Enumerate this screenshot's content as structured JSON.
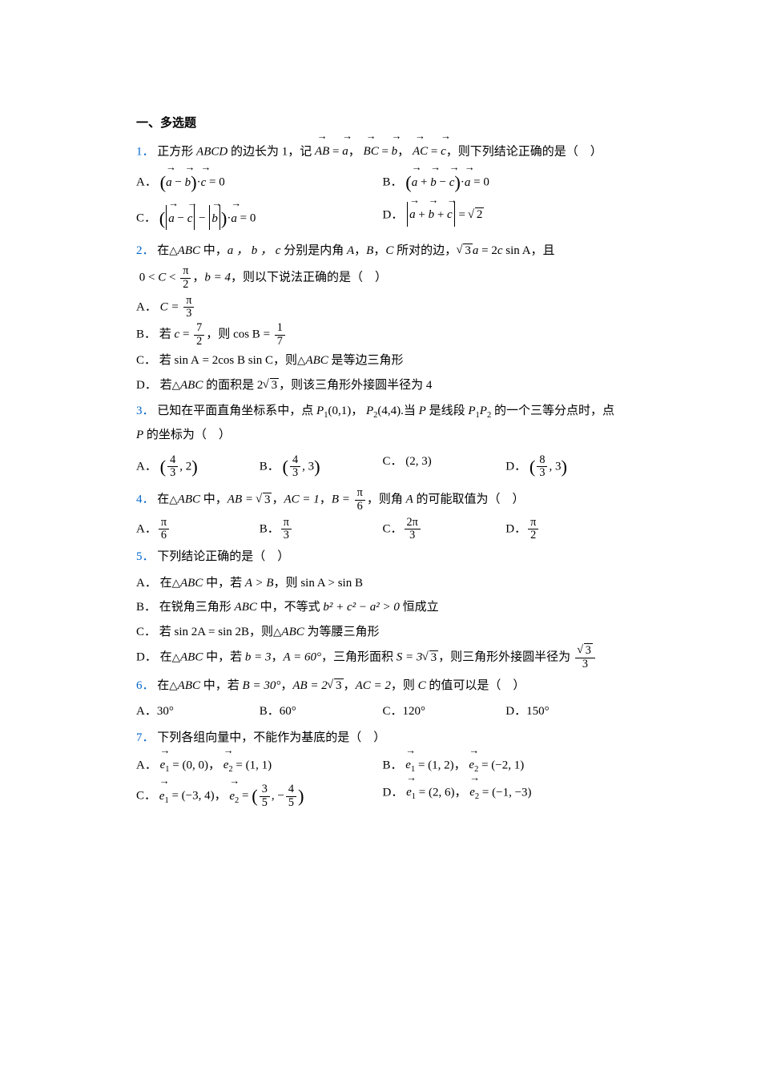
{
  "section_title": "一、多选题",
  "colors": {
    "text": "#000000",
    "qnum": "#0066cc",
    "background": "#ffffff"
  },
  "typography": {
    "base_fontsize": 15,
    "line_height": 1.9,
    "font_family": "SimSun / Times New Roman"
  },
  "questions": [
    {
      "num": "1．",
      "stem_parts": {
        "pre": "正方形 ",
        "abcd": "ABCD",
        "mid1": " 的边长为 1，记",
        "ab": "AB",
        "eq": " = ",
        "a": "a",
        "c1": "，",
        "bc": "BC",
        "b": "b",
        "c2": "，",
        "ac": "AC",
        "c": "c",
        "tail": "，则下列结论正确的是（　）"
      },
      "options": {
        "A": {
          "label": "A．",
          "a": "a",
          "b": "b",
          "c": "c",
          "dot": "·",
          "eq0": " = 0"
        },
        "B": {
          "label": "B．",
          "a": "a",
          "b": "b",
          "c": "c",
          "dot": "·",
          "eq0": " = 0"
        },
        "C": {
          "label": "C．",
          "a": "a",
          "b": "b",
          "c": "c",
          "dot": "·",
          "eq0": " = 0"
        },
        "D": {
          "label": "D．",
          "a": "a",
          "b": "b",
          "c": "c",
          "eq": " = ",
          "sqrt2": "2"
        }
      }
    },
    {
      "num": "2．",
      "stem_parts": {
        "pre": "在",
        "ABC": "ABC",
        "mid": " 中，",
        "abc": "a ， b ， c",
        "mid2": " 分别是内角 ",
        "Aang": "A",
        "comma1": "，",
        "Bang": "B",
        "comma2": "，",
        "Cang": "C",
        "mid3": " 所对的边，",
        "sqrt3": "3",
        "a": "a",
        "eq": " = 2",
        "cvar": "c",
        "sinA": " sin A",
        "and": "，且",
        "range_pre": "0 < ",
        "Cvar": "C",
        "lt": " < ",
        "pi": "π",
        "two": "2",
        "comma3": "，",
        "b4": "b = 4",
        "tail": "，则以下说法正确的是（　）"
      },
      "options": {
        "A": {
          "label": "A．",
          "C_eq": "C = ",
          "pi": "π",
          "three": "3"
        },
        "B": {
          "label": "B．",
          "pre": "若 ",
          "c": "c",
          "eq": " = ",
          "seven": "7",
          "two": "2",
          "mid": "，则 ",
          "cosB": "cos B",
          "eq2": " = ",
          "one": "1",
          "seven2": "7"
        },
        "C": {
          "label": "C．",
          "pre": "若 ",
          "sinA": "sin A",
          "eq": " = 2",
          "cosB": "cos B",
          "sinC": " sin C",
          "mid": "，则",
          "ABC": "ABC",
          "post": " 是等边三角形"
        },
        "D": {
          "label": "D．",
          "pre": "若",
          "ABC": "ABC",
          "mid": " 的面积是 ",
          "two": "2",
          "sqrt3": "3",
          "post": "，则该三角形外接圆半径为 4"
        }
      }
    },
    {
      "num": "3．",
      "stem_parts": {
        "pre": "已知在平面直角坐标系中，点 ",
        "P1": "P",
        "sub1": "1",
        "coord1": "(0,1)",
        "c1": "，",
        "P2": "P",
        "sub2": "2",
        "coord2": "(4,4)",
        "dot": ".",
        "mid": "当 ",
        "P": "P",
        "mid2": " 是线段 ",
        "P1b": "P",
        "sub1b": "1",
        "P2b": "P",
        "sub2b": "2",
        "mid3": " 的一个三等分点时，点 ",
        "Pb": "P",
        "tail": " 的坐标为（　）"
      },
      "options": {
        "A": {
          "label": "A．",
          "n": "4",
          "d": "3",
          "y": ", 2"
        },
        "B": {
          "label": "B．",
          "n": "4",
          "d": "3",
          "y": ", 3"
        },
        "C": {
          "label": "C．",
          "coord": "(2, 3)"
        },
        "D": {
          "label": "D．",
          "n": "8",
          "d": "3",
          "y": ", 3"
        }
      }
    },
    {
      "num": "4．",
      "stem_parts": {
        "pre": "在",
        "ABC": "ABC",
        "mid": " 中，",
        "AB": "AB = ",
        "sqrt3": "3",
        "c1": "，",
        "AC": "AC = 1",
        "c2": "，",
        "B": "B = ",
        "pi": "π",
        "six": "6",
        "tail": "，则角 ",
        "A": "A",
        "tail2": " 的可能取值为（　）"
      },
      "options": {
        "A": {
          "label": "A．",
          "pi": "π",
          "d": "6"
        },
        "B": {
          "label": "B．",
          "pi": "π",
          "d": "3"
        },
        "C": {
          "label": "C．",
          "n": "2π",
          "d": "3"
        },
        "D": {
          "label": "D．",
          "pi": "π",
          "d": "2"
        }
      }
    },
    {
      "num": "5．",
      "stem": "下列结论正确的是（　）",
      "options": {
        "A": {
          "label": "A．",
          "pre": "在",
          "ABC": "ABC",
          "mid": " 中，若 ",
          "AgtB": "A > B",
          "post": "，则 ",
          "sin": "sin A > sin B"
        },
        "B": {
          "label": "B．",
          "pre": "在锐角三角形 ",
          "ABC": "ABC",
          "mid": " 中，不等式 ",
          "expr": "b² + c² − a² > 0",
          "post": " 恒成立"
        },
        "C": {
          "label": "C．",
          "pre": "若 ",
          "sin2A": "sin 2A = sin 2B",
          "mid": "，则",
          "ABC": "ABC",
          "post": " 为等腰三角形"
        },
        "D": {
          "label": "D．",
          "pre": "在",
          "ABC": "ABC",
          "mid": " 中，若 ",
          "b3": "b = 3",
          "c1": "，",
          "A60": "A = 60°",
          "c2": "，三角形面积 ",
          "S": "S = 3",
          "sqrt3": "3",
          "post": "，则三角形外接圆半径为 ",
          "rn": "√3",
          "rd": "3",
          "sqrt3b": "3",
          "three": "3"
        }
      }
    },
    {
      "num": "6．",
      "stem_parts": {
        "pre": "在",
        "ABC": "ABC",
        "mid": " 中，若 ",
        "B30": "B = 30°",
        "c1": "，",
        "AB": "AB = 2",
        "sqrt3": "3",
        "c2": "，",
        "AC": "AC = 2",
        "tail": "，则 ",
        "C": "C",
        "tail2": " 的值可以是（　）"
      },
      "options": {
        "A": {
          "label": "A．",
          "v": "30°"
        },
        "B": {
          "label": "B．",
          "v": "60°"
        },
        "C": {
          "label": "C．",
          "v": "120°"
        },
        "D": {
          "label": "D．",
          "v": "150°"
        }
      }
    },
    {
      "num": "7．",
      "stem": "下列各组向量中，不能作为基底的是（　）",
      "options": {
        "A": {
          "label": "A．",
          "e1": "e",
          "s1": "1",
          "v1": " = (0, 0)",
          "c": "，",
          "e2": "e",
          "s2": "2",
          "v2": " = (1, 1)"
        },
        "B": {
          "label": "B．",
          "e1": "e",
          "s1": "1",
          "v1": " = (1, 2)",
          "c": "，",
          "e2": "e",
          "s2": "2",
          "v2": " = (−2, 1)"
        },
        "C": {
          "label": "C．",
          "e1": "e",
          "s1": "1",
          "v1": " = (−3, 4)",
          "c": "，",
          "e2": "e",
          "s2": "2",
          "eq": " = ",
          "n1": "3",
          "d1": "5",
          "sep": ", −",
          "n2": "4",
          "d2": "5"
        },
        "D": {
          "label": "D．",
          "e1": "e",
          "s1": "1",
          "v1": " = (2, 6)",
          "c": "，",
          "e2": "e",
          "s2": "2",
          "v2": " = (−1, −3)"
        }
      }
    }
  ]
}
